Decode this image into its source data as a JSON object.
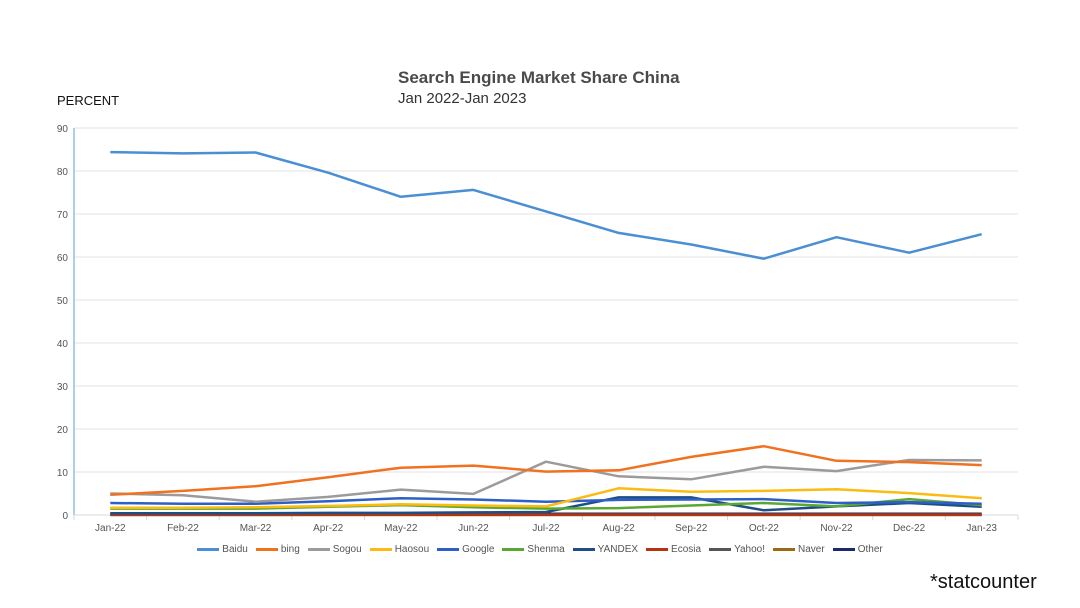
{
  "header": {
    "title": "Search Engine Market Share China",
    "subtitle": "Jan 2022-Jan 2023",
    "y_axis_label": "PERCENT"
  },
  "footer": {
    "watermark": "*statcounter"
  },
  "chart_data": {
    "type": "line",
    "title": "Search Engine Market Share China",
    "subtitle": "Jan 2022-Jan 2023",
    "xlabel": "",
    "ylabel": "PERCENT",
    "ylim": [
      0,
      90
    ],
    "yticks": [
      0,
      10,
      20,
      30,
      40,
      50,
      60,
      70,
      80,
      90
    ],
    "grid": true,
    "legend_position": "bottom",
    "categories": [
      "Jan-22",
      "Feb-22",
      "Mar-22",
      "Apr-22",
      "May-22",
      "Jun-22",
      "Jul-22",
      "Aug-22",
      "Sep-22",
      "Oct-22",
      "Nov-22",
      "Dec-22",
      "Jan-23"
    ],
    "series": [
      {
        "name": "Baidu",
        "color": "#4a8fd4",
        "values": [
          84.4,
          84.1,
          84.3,
          79.6,
          74.0,
          75.6,
          70.6,
          65.6,
          62.9,
          59.6,
          64.6,
          61.0,
          65.3
        ]
      },
      {
        "name": "bing",
        "color": "#f0711e",
        "values": [
          4.7,
          5.6,
          6.7,
          8.8,
          11.0,
          11.5,
          10.1,
          10.4,
          13.5,
          16.0,
          12.6,
          12.3,
          11.6
        ]
      },
      {
        "name": "Sogou",
        "color": "#9b9b9b",
        "values": [
          5.0,
          4.6,
          3.1,
          4.2,
          5.9,
          4.9,
          12.4,
          9.0,
          8.3,
          11.2,
          10.2,
          12.8,
          12.7
        ]
      },
      {
        "name": "Haosou",
        "color": "#fbbb12",
        "values": [
          1.7,
          1.7,
          1.8,
          2.1,
          2.5,
          2.2,
          2.0,
          6.2,
          5.4,
          5.6,
          6.0,
          5.1,
          3.9
        ]
      },
      {
        "name": "Google",
        "color": "#2e5fc5",
        "values": [
          2.8,
          2.6,
          2.6,
          3.2,
          3.9,
          3.6,
          3.1,
          3.5,
          3.6,
          3.7,
          2.8,
          3.0,
          2.6
        ]
      },
      {
        "name": "Shenma",
        "color": "#5aa832",
        "values": [
          1.5,
          1.5,
          1.5,
          1.9,
          2.3,
          1.8,
          1.5,
          1.6,
          2.2,
          2.8,
          2.0,
          3.7,
          2.3
        ]
      },
      {
        "name": "YANDEX",
        "color": "#1d4e86",
        "values": [
          0.4,
          0.4,
          0.4,
          0.5,
          0.5,
          0.6,
          0.7,
          4.1,
          4.1,
          1.1,
          2.0,
          2.8,
          1.9
        ]
      },
      {
        "name": "Ecosia",
        "color": "#b5340f",
        "values": [
          0.1,
          0.1,
          0.1,
          0.1,
          0.1,
          0.1,
          0.1,
          0.1,
          0.1,
          0.1,
          0.1,
          0.1,
          0.1
        ]
      },
      {
        "name": "Yahoo!",
        "color": "#555555",
        "values": [
          0.1,
          0.1,
          0.1,
          0.1,
          0.1,
          0.1,
          0.1,
          0.1,
          0.1,
          0.1,
          0.1,
          0.1,
          0.1
        ]
      },
      {
        "name": "Naver",
        "color": "#9a6a12",
        "values": [
          0.0,
          0.0,
          0.0,
          0.0,
          0.0,
          0.0,
          0.0,
          0.0,
          0.0,
          0.0,
          0.0,
          0.0,
          0.0
        ]
      },
      {
        "name": "Other",
        "color": "#1a2a6c",
        "values": [
          0.3,
          0.3,
          0.3,
          0.3,
          0.3,
          0.3,
          0.3,
          0.3,
          0.3,
          0.3,
          0.3,
          0.3,
          0.3
        ]
      }
    ]
  }
}
